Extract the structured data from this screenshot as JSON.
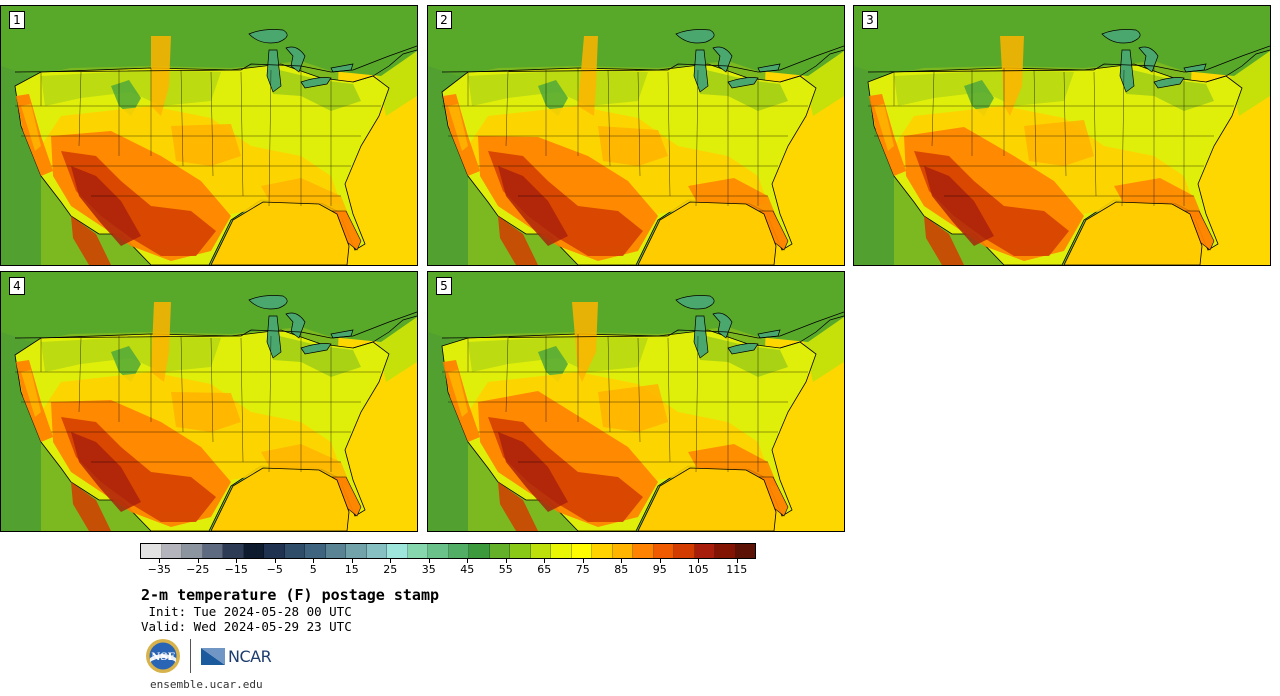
{
  "panels": [
    {
      "label": "1",
      "variant": 0
    },
    {
      "label": "2",
      "variant": 1
    },
    {
      "label": "3",
      "variant": 2
    },
    {
      "label": "4",
      "variant": 3
    },
    {
      "label": "5",
      "variant": 4
    }
  ],
  "colorbar": {
    "colors": [
      "#e2e2e2",
      "#b4b4bc",
      "#8c94a0",
      "#5e6a80",
      "#2d3b55",
      "#0e1a2e",
      "#1f3350",
      "#2f4c68",
      "#3e6480",
      "#5a8494",
      "#72a3ab",
      "#86c0c2",
      "#9ee6db",
      "#86d6ae",
      "#6ac28a",
      "#52ae64",
      "#3c9a3c",
      "#64b028",
      "#8ac818",
      "#bde00c",
      "#e8f504",
      "#fffb00",
      "#ffd200",
      "#ffb400",
      "#ff8200",
      "#f05a00",
      "#d23c00",
      "#a81e0c",
      "#821404",
      "#5c1204"
    ],
    "tick_labels": [
      "−35",
      "−25",
      "−15",
      "−5",
      "5",
      "15",
      "25",
      "35",
      "45",
      "55",
      "65",
      "75",
      "85",
      "95",
      "105",
      "115"
    ],
    "min": -40,
    "max": 120,
    "tick_start": -35,
    "tick_step": 10
  },
  "title": "2-m temperature (F) postage stamp",
  "init": " Init: Tue 2024-05-28 00 UTC",
  "valid": "Valid: Wed 2024-05-29 23 UTC",
  "logos": {
    "nsf": "NSF",
    "ncar": "NCAR"
  },
  "footer": {
    "url": "ensemble.ucar.edu"
  },
  "map_colors": {
    "ocean_west": "#52a030",
    "ocean_west_near": "#7cb820",
    "gulf": "#ffcc00",
    "atlantic_south": "#ffd700",
    "atlantic_north": "#c6e00a",
    "canada": "#58a82a",
    "lakes": "#4aa86e",
    "land_base": "#e0ef0a"
  }
}
